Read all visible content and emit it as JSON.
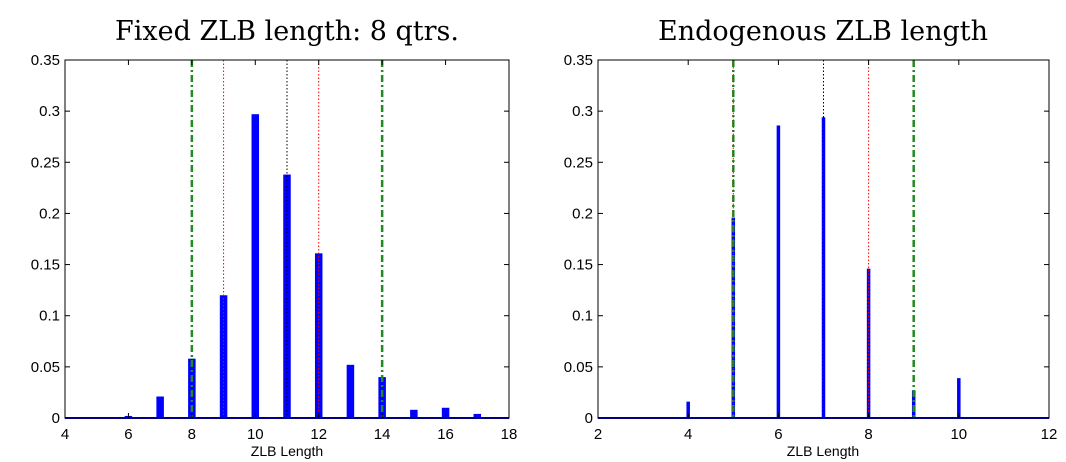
{
  "chart_data": [
    {
      "type": "bar",
      "title": "Fixed ZLB length: 8 qtrs.",
      "xlabel": "ZLB Length",
      "ylabel": "",
      "xlim": [
        4,
        18
      ],
      "ylim": [
        0,
        0.35
      ],
      "xticks": [
        "4",
        "6",
        "8",
        "10",
        "12",
        "14",
        "16",
        "18"
      ],
      "yticks": [
        "0",
        "0.05",
        "0.1",
        "0.15",
        "0.2",
        "0.25",
        "0.3",
        "0.35"
      ],
      "bar_color": "#0000ff",
      "x": [
        6,
        7,
        8,
        9,
        10,
        11,
        12,
        13,
        14,
        15,
        16,
        17
      ],
      "values": [
        0.002,
        0.021,
        0.058,
        0.12,
        0.297,
        0.238,
        0.161,
        0.052,
        0.04,
        0.008,
        0.01,
        0.004
      ],
      "reference_lines": [
        {
          "x": 8,
          "style": "dash-dot",
          "color": "#228B22"
        },
        {
          "x": 9,
          "style": "dotted",
          "color": "#ff0000"
        },
        {
          "x": 11,
          "style": "dotted",
          "color": "#000000"
        },
        {
          "x": 12,
          "style": "dotted",
          "color": "#ff0000"
        },
        {
          "x": 14,
          "style": "dash-dot",
          "color": "#228B22"
        }
      ]
    },
    {
      "type": "bar",
      "title": "Endogenous ZLB length",
      "xlabel": "ZLB Length",
      "ylabel": "",
      "xlim": [
        2,
        12
      ],
      "ylim": [
        0,
        0.35
      ],
      "xticks": [
        "2",
        "4",
        "6",
        "8",
        "10",
        "12"
      ],
      "yticks": [
        "0",
        "0.05",
        "0.1",
        "0.15",
        "0.2",
        "0.25",
        "0.3",
        "0.35"
      ],
      "bar_color": "#0000ff",
      "x": [
        4,
        5,
        6,
        7,
        8,
        9,
        10
      ],
      "values": [
        0.016,
        0.196,
        0.286,
        0.294,
        0.146,
        0.027,
        0.039
      ],
      "reference_lines": [
        {
          "x": 5,
          "style": "dash-dot",
          "color": "#228B22"
        },
        {
          "x": 5,
          "style": "dotted",
          "color": "#ff0000"
        },
        {
          "x": 7,
          "style": "dotted",
          "color": "#000000"
        },
        {
          "x": 8,
          "style": "dotted",
          "color": "#ff0000"
        },
        {
          "x": 9,
          "style": "dash-dot",
          "color": "#228B22"
        }
      ]
    }
  ]
}
